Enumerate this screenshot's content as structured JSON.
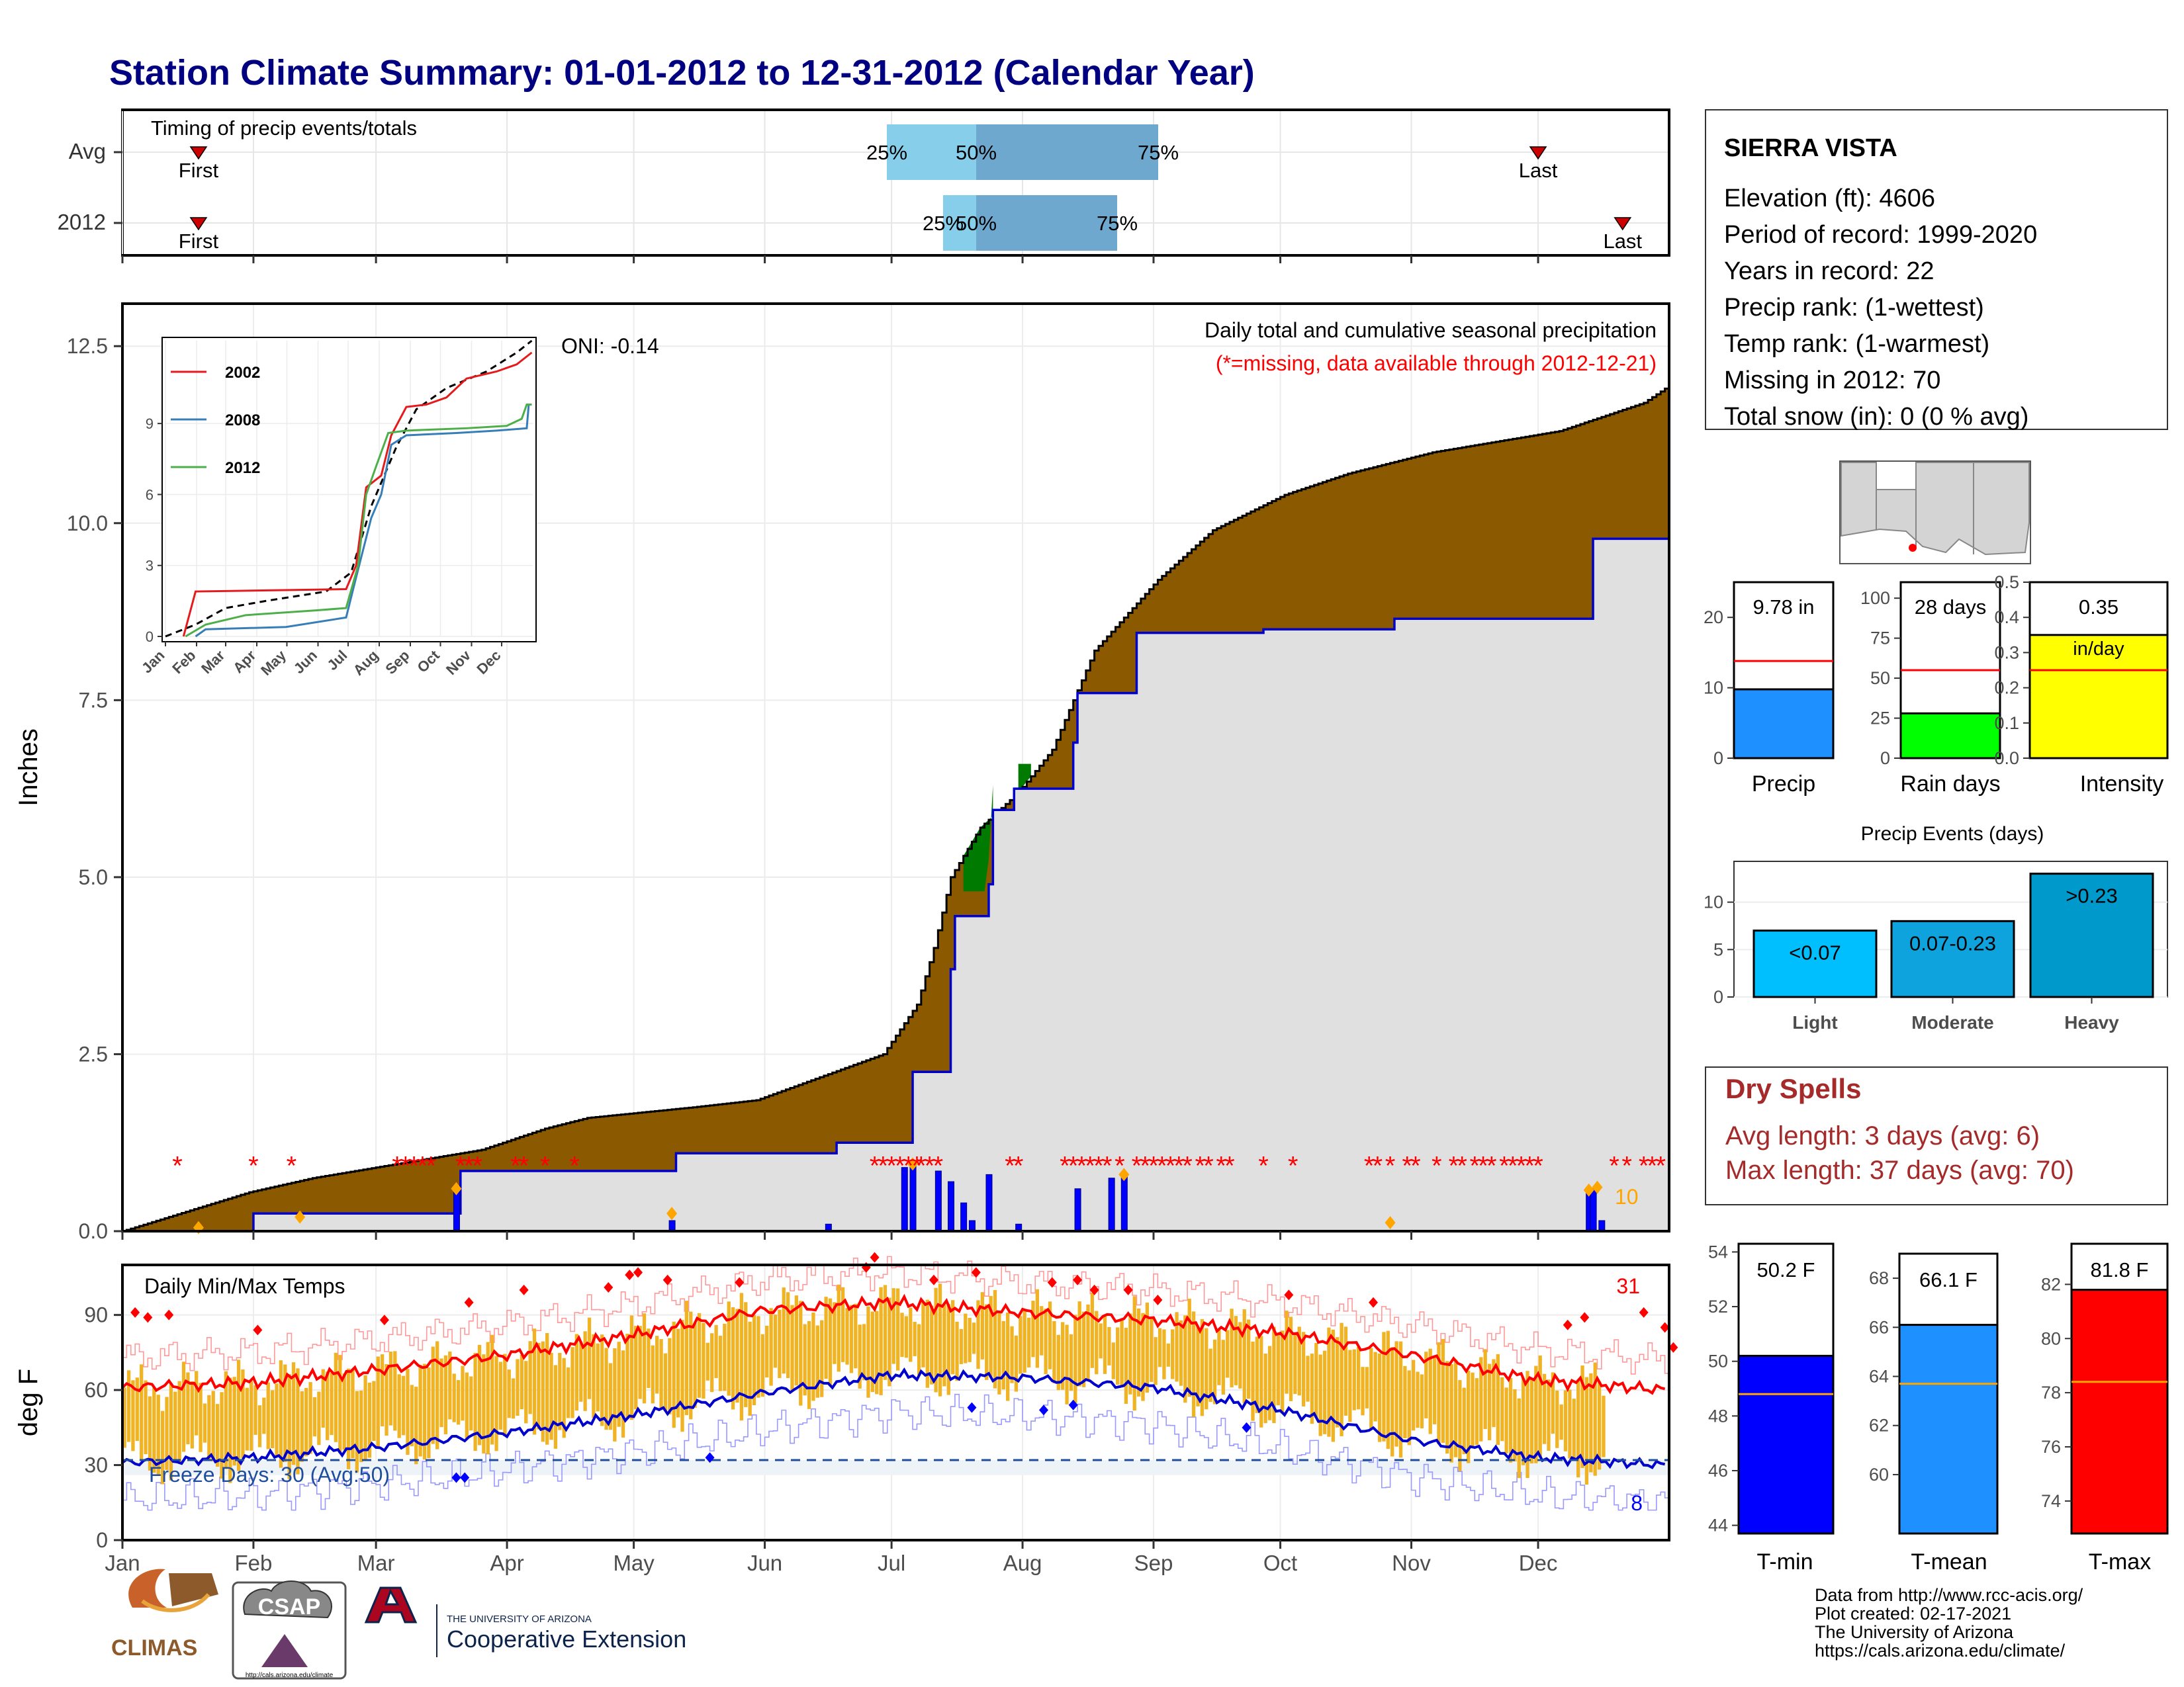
{
  "title": "Station Climate Summary: 01-01-2012 to 12-31-2012 (Calendar Year)",
  "months": [
    "Jan",
    "Feb",
    "Mar",
    "Apr",
    "May",
    "Jun",
    "Jul",
    "Aug",
    "Sep",
    "Oct",
    "Nov",
    "Dec"
  ],
  "timing": {
    "label": "Timing of precip events/totals",
    "rows": [
      {
        "name": "Avg",
        "first": "First",
        "last": "Last",
        "p25": "25%",
        "p50": "50%",
        "p75": "75%"
      },
      {
        "name": "2012",
        "first": "First",
        "last": "Last",
        "p25": "25%",
        "p50": "50%",
        "p75": "75%"
      }
    ]
  },
  "precip_panel": {
    "ylabel": "Inches",
    "yticks": [
      "0.0",
      "2.5",
      "5.0",
      "7.5",
      "10.0",
      "12.5"
    ],
    "caption": "Daily total and cumulative seasonal precipitation",
    "missing_note": "(*=missing, data available through 2012-12-21)",
    "oni": "ONI: -0.14",
    "big_day_count": "10"
  },
  "inset": {
    "yticks": [
      "0",
      "3",
      "6",
      "9"
    ],
    "xticks": [
      "Jan",
      "Feb",
      "Mar",
      "Apr",
      "May",
      "Jun",
      "Jul",
      "Aug",
      "Sep",
      "Oct",
      "Nov",
      "Dec"
    ],
    "legend": [
      {
        "name": "2002",
        "color": "#e41a1c"
      },
      {
        "name": "2008",
        "color": "#377eb8"
      },
      {
        "name": "2012",
        "color": "#4daf4a"
      }
    ]
  },
  "temp_panel": {
    "ylabel": "deg F",
    "yticks": [
      "0",
      "30",
      "60",
      "90"
    ],
    "label": "Daily Min/Max Temps",
    "hot_count": "31",
    "cold_count": "8",
    "freeze": "Freeze Days: 30 (Avg:50)"
  },
  "station": {
    "name": "SIERRA VISTA",
    "lines": [
      "Elevation (ft): 4606",
      "Period of record: 1999-2020",
      "Years in record: 22",
      "Precip rank:  (1-wettest)",
      "Temp rank:  (1-warmest)",
      "Missing in 2012: 70",
      "Total snow (in): 0 (0 % avg)"
    ]
  },
  "mini_bars": [
    {
      "label": "Precip",
      "value_text": "9.78 in",
      "value": 9.78,
      "avg": 13.8,
      "ymax": 25,
      "yticks": [
        "0",
        "10",
        "20"
      ],
      "color": "#1e90ff"
    },
    {
      "label": "Rain days",
      "value_text": "28 days",
      "value": 28,
      "avg": 55,
      "ymax": 110,
      "yticks": [
        "0",
        "25",
        "50",
        "75",
        "100"
      ],
      "color": "#00ff00"
    },
    {
      "label": "Intensity",
      "value_text": "0.35",
      "value_text2": "in/day",
      "value": 0.35,
      "avg": 0.25,
      "ymax": 0.5,
      "yticks": [
        "0.0",
        "0.1",
        "0.2",
        "0.3",
        "0.4",
        "0.5"
      ],
      "color": "#ffff00"
    }
  ],
  "events": {
    "title": "Precip Events (days)",
    "yticks": [
      "0",
      "5",
      "10"
    ],
    "bars": [
      {
        "name": "Light",
        "label": "<0.07",
        "value": 7,
        "color": "#00bfff"
      },
      {
        "name": "Moderate",
        "label": "0.07-0.23",
        "value": 8,
        "color": "#0fa3dd"
      },
      {
        "name": "Heavy",
        "label": ">0.23",
        "value": 13,
        "color": "#0099cc"
      }
    ]
  },
  "dry_spells": {
    "title": "Dry Spells",
    "avg": "Avg length: 3 days (avg: 6)",
    "max": "Max length: 37 days (avg: 70)"
  },
  "temp_bars": [
    {
      "label": "T-min",
      "value_text": "50.2 F",
      "value": 50.2,
      "avg": 48.8,
      "ymin": 43.7,
      "ymax": 54.3,
      "yticks": [
        "44",
        "46",
        "48",
        "50",
        "52",
        "54"
      ],
      "color": "#0000ff"
    },
    {
      "label": "T-mean",
      "value_text": "66.1 F",
      "value": 66.1,
      "avg": 63.7,
      "ymin": 57.6,
      "ymax": 69.0,
      "yticks": [
        "60",
        "62",
        "64",
        "66",
        "68"
      ],
      "color": "#1e90ff"
    },
    {
      "label": "T-max",
      "value_text": "81.8 F",
      "value": 81.8,
      "avg": 78.4,
      "ymin": 72.8,
      "ymax": 83.5,
      "yticks": [
        "74",
        "76",
        "78",
        "80",
        "82"
      ],
      "color": "#ff0000"
    }
  ],
  "credits": [
    "Data from http://www.rcc-acis.org/",
    "Plot created: 02-17-2021",
    "The University of Arizona",
    "https://cals.arizona.edu/climate/"
  ],
  "logos": {
    "climas": "CLIMAS",
    "csap": "CSAP",
    "csap_url": "http://cals.arizona.edu/climate",
    "ua_small": "THE UNIVERSITY OF ARIZONA",
    "ua_big": "Cooperative Extension"
  },
  "chart_data": [
    {
      "type": "area",
      "title": "Daily total and cumulative seasonal precipitation",
      "ylabel": "Inches",
      "ylim": [
        0,
        13
      ],
      "note": "Brown/green band between cumulative average and cumulative 2012; grey area = cumulative 2012",
      "cumulative_avg": {
        "x_day": [
          0,
          30,
          45,
          65,
          85,
          100,
          110,
          135,
          150,
          180,
          188,
          192,
          196,
          203,
          212,
          220,
          230,
          245,
          258,
          275,
          290,
          310,
          340,
          360,
          365
        ],
        "y": [
          0,
          0.55,
          0.75,
          0.95,
          1.15,
          1.45,
          1.6,
          1.75,
          1.85,
          2.5,
          3.2,
          4.0,
          5.0,
          5.7,
          6.2,
          6.8,
          8.2,
          9.2,
          9.9,
          10.4,
          10.7,
          11.0,
          11.3,
          11.7,
          11.9
        ]
      },
      "cumulative_2012": {
        "x_day": [
          0,
          30,
          31,
          79,
          80,
          130,
          131,
          168,
          169,
          186,
          187,
          196,
          197,
          205,
          206,
          211,
          212,
          225,
          226,
          240,
          241,
          270,
          271,
          300,
          301,
          347,
          348,
          365
        ],
        "y": [
          0,
          0.0,
          0.25,
          0.25,
          0.85,
          0.85,
          1.1,
          1.1,
          1.25,
          1.25,
          2.25,
          3.7,
          4.45,
          4.9,
          5.95,
          6.25,
          6.25,
          6.9,
          7.6,
          8.45,
          8.45,
          8.5,
          8.5,
          8.5,
          8.65,
          8.65,
          9.78,
          9.78
        ]
      },
      "green_segments_day": [
        [
          199,
          206
        ],
        [
          212,
          215
        ]
      ],
      "daily_bars": {
        "x_day": [
          79,
          130,
          167,
          185,
          187,
          193,
          196,
          199,
          201,
          205,
          212,
          226,
          234,
          237,
          347,
          348,
          350
        ],
        "y": [
          0.6,
          0.15,
          0.1,
          0.9,
          0.95,
          0.85,
          0.7,
          0.4,
          0.15,
          0.8,
          0.1,
          0.6,
          0.75,
          0.8,
          0.55,
          0.6,
          0.15
        ]
      },
      "missing_days": [
        13,
        31,
        40,
        65,
        67,
        69,
        71,
        73,
        80,
        82,
        84,
        93,
        95,
        100,
        107,
        178,
        180,
        182,
        184,
        186,
        188,
        189,
        191,
        193,
        210,
        212,
        223,
        225,
        227,
        229,
        231,
        233,
        236,
        240,
        242,
        244,
        246,
        248,
        250,
        252,
        255,
        257,
        260,
        262,
        270,
        277,
        295,
        297,
        300,
        304,
        306,
        311,
        315,
        317,
        320,
        322,
        324,
        327,
        329,
        331,
        333,
        335,
        353,
        356,
        360,
        362,
        364
      ]
    },
    {
      "type": "line",
      "title": "Daily Min/Max Temps",
      "ylabel": "deg F",
      "ylim": [
        0,
        110
      ],
      "series": [
        {
          "name": "avg max",
          "x_day": [
            0,
            31,
            60,
            91,
            121,
            152,
            182,
            213,
            244,
            274,
            305,
            335,
            365
          ],
          "y": [
            61,
            63,
            68,
            74,
            82,
            92,
            95,
            91,
            88,
            83,
            74,
            64,
            60
          ]
        },
        {
          "name": "avg min",
          "x_day": [
            0,
            31,
            60,
            91,
            121,
            152,
            182,
            213,
            244,
            274,
            305,
            335,
            365
          ],
          "y": [
            31,
            33,
            37,
            43,
            50,
            59,
            66,
            65,
            61,
            52,
            40,
            33,
            30
          ]
        }
      ],
      "freeze_line": 32
    },
    {
      "type": "bar",
      "title": "Precip Events (days)",
      "categories": [
        "Light",
        "Moderate",
        "Heavy"
      ],
      "values": [
        7,
        8,
        13
      ]
    }
  ]
}
